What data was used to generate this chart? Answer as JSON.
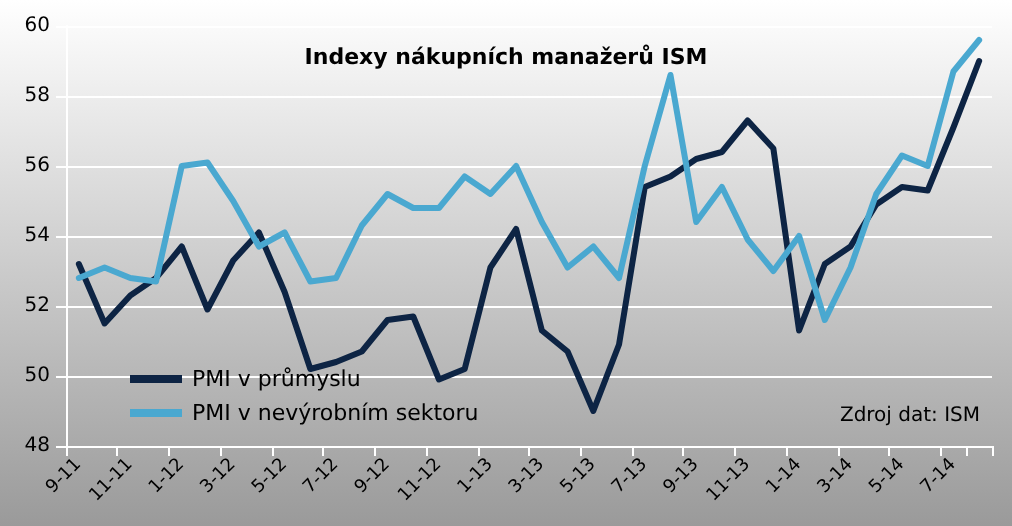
{
  "chart_data": {
    "type": "line",
    "title": "Indexy nákupních manažerů ISM",
    "annotations": [
      "Zdroj dat: ISM"
    ],
    "categories": [
      "9-11",
      null,
      "11-11",
      null,
      "1-12",
      null,
      "3-12",
      null,
      "5-12",
      null,
      "7-12",
      null,
      "9-12",
      null,
      "11-12",
      null,
      "1-13",
      null,
      "3-13",
      null,
      "5-13",
      null,
      "7-13",
      null,
      "9-13",
      null,
      "11-13",
      null,
      "1-14",
      null,
      "3-14",
      null,
      "5-14",
      null,
      "7-14",
      null
    ],
    "series": [
      {
        "name": "PMI v průmyslu",
        "color": "#0d2444",
        "values": [
          53.2,
          51.5,
          52.3,
          52.8,
          53.7,
          51.9,
          53.3,
          54.1,
          52.4,
          50.2,
          50.4,
          50.7,
          51.6,
          51.7,
          49.9,
          50.2,
          53.1,
          54.2,
          51.3,
          50.7,
          49.0,
          50.9,
          55.4,
          55.7,
          56.2,
          56.4,
          57.3,
          56.5,
          51.3,
          53.2,
          53.7,
          54.9,
          55.4,
          55.3,
          57.1,
          59.0
        ]
      },
      {
        "name": "PMI v nevýrobním sektoru",
        "color": "#4aa8d0",
        "values": [
          52.8,
          53.1,
          52.8,
          52.7,
          56.0,
          56.1,
          55.0,
          53.7,
          54.1,
          52.7,
          52.8,
          54.3,
          55.2,
          54.8,
          54.8,
          55.7,
          55.2,
          56.0,
          54.4,
          53.1,
          53.7,
          52.8,
          56.0,
          58.6,
          54.4,
          55.4,
          53.9,
          53.0,
          54.0,
          51.6,
          53.1,
          55.2,
          56.3,
          56.0,
          58.7,
          59.6
        ]
      }
    ],
    "ylim": [
      48,
      60
    ],
    "yticks": [
      48,
      50,
      52,
      54,
      56,
      58,
      60
    ],
    "grid": "y",
    "legend": "bottom left",
    "marker": "none",
    "line_style": "solid"
  }
}
